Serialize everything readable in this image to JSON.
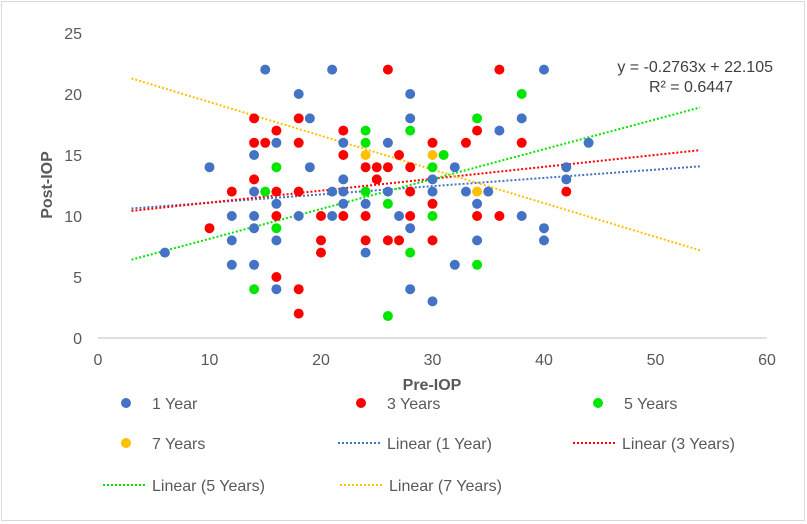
{
  "chart_data": {
    "type": "scatter",
    "xlabel": "Pre-IOP",
    "ylabel": "Post-IOP",
    "xlim": [
      0,
      60
    ],
    "ylim": [
      0,
      25
    ],
    "xticks": [
      0,
      10,
      20,
      30,
      40,
      50,
      60
    ],
    "yticks": [
      0,
      5,
      10,
      15,
      20,
      25
    ],
    "grid": false,
    "legend_position": "bottom",
    "series": [
      {
        "name": "1 Year",
        "color": "#4472C4",
        "points": [
          [
            15,
            22
          ],
          [
            21,
            22
          ],
          [
            18,
            20
          ],
          [
            19,
            18
          ],
          [
            16,
            16
          ],
          [
            14,
            15
          ],
          [
            10,
            14
          ],
          [
            19,
            14
          ],
          [
            14,
            12
          ],
          [
            16,
            11
          ],
          [
            12,
            10
          ],
          [
            14,
            10
          ],
          [
            18,
            10
          ],
          [
            21,
            10
          ],
          [
            14,
            9
          ],
          [
            12,
            8
          ],
          [
            16,
            8
          ],
          [
            6,
            7
          ],
          [
            12,
            6
          ],
          [
            14,
            6
          ],
          [
            16,
            4
          ],
          [
            28,
            20
          ],
          [
            40,
            22
          ],
          [
            28,
            18
          ],
          [
            38,
            18
          ],
          [
            36,
            17
          ],
          [
            22,
            16
          ],
          [
            26,
            16
          ],
          [
            44,
            16
          ],
          [
            32,
            14
          ],
          [
            42,
            14
          ],
          [
            22,
            13
          ],
          [
            30,
            13
          ],
          [
            42,
            13
          ],
          [
            21,
            12
          ],
          [
            22,
            12
          ],
          [
            26,
            12
          ],
          [
            30,
            12
          ],
          [
            33,
            12
          ],
          [
            35,
            12
          ],
          [
            22,
            11
          ],
          [
            24,
            11
          ],
          [
            34,
            11
          ],
          [
            27,
            10
          ],
          [
            38,
            10
          ],
          [
            28,
            9
          ],
          [
            40,
            9
          ],
          [
            24,
            7
          ],
          [
            34,
            8
          ],
          [
            40,
            8
          ],
          [
            32,
            6
          ],
          [
            28,
            4
          ],
          [
            30,
            3
          ]
        ]
      },
      {
        "name": "3 Years",
        "color": "#FF0000",
        "points": [
          [
            14,
            18
          ],
          [
            18,
            18
          ],
          [
            16,
            17
          ],
          [
            14,
            16
          ],
          [
            15,
            16
          ],
          [
            18,
            16
          ],
          [
            14,
            13
          ],
          [
            12,
            12
          ],
          [
            16,
            12
          ],
          [
            18,
            12
          ],
          [
            16,
            10
          ],
          [
            20,
            10
          ],
          [
            10,
            9
          ],
          [
            20,
            8
          ],
          [
            20,
            7
          ],
          [
            16,
            5
          ],
          [
            18,
            4
          ],
          [
            18,
            2
          ],
          [
            26,
            22
          ],
          [
            36,
            22
          ],
          [
            22,
            17
          ],
          [
            34,
            17
          ],
          [
            30,
            16
          ],
          [
            33,
            16
          ],
          [
            38,
            16
          ],
          [
            22,
            15
          ],
          [
            27,
            15
          ],
          [
            24,
            14
          ],
          [
            25,
            14
          ],
          [
            26,
            14
          ],
          [
            28,
            14
          ],
          [
            25,
            13
          ],
          [
            28,
            12
          ],
          [
            42,
            12
          ],
          [
            22,
            10
          ],
          [
            24,
            10
          ],
          [
            28,
            10
          ],
          [
            34,
            10
          ],
          [
            36,
            10
          ],
          [
            30,
            11
          ],
          [
            24,
            8
          ],
          [
            26,
            8
          ],
          [
            27,
            8
          ],
          [
            30,
            8
          ]
        ]
      },
      {
        "name": "5 Years",
        "color": "#00E600",
        "points": [
          [
            16,
            14
          ],
          [
            15,
            12
          ],
          [
            16,
            9
          ],
          [
            14,
            4
          ],
          [
            38,
            20
          ],
          [
            34,
            18
          ],
          [
            24,
            17
          ],
          [
            28,
            17
          ],
          [
            24,
            16
          ],
          [
            31,
            15
          ],
          [
            30,
            14
          ],
          [
            24,
            12
          ],
          [
            26,
            11
          ],
          [
            30,
            10
          ],
          [
            28,
            7
          ],
          [
            34,
            6
          ],
          [
            26,
            1.8
          ]
        ]
      },
      {
        "name": "7 Years",
        "color": "#FFC000",
        "points": [
          [
            24,
            15
          ],
          [
            30,
            15
          ],
          [
            34,
            12
          ]
        ]
      }
    ],
    "trendlines": [
      {
        "name": "Linear (1 Year)",
        "series": "1 Year",
        "color": "#4472C4"
      },
      {
        "name": "Linear (3 Years)",
        "series": "3 Years",
        "color": "#FF0000"
      },
      {
        "name": "Linear (5 Years)",
        "series": "5 Years",
        "color": "#00E600"
      },
      {
        "name": "Linear (7 Years)",
        "series": "7 Years",
        "color": "#FFC000",
        "slope": -0.2763,
        "intercept": 22.105
      }
    ],
    "annotation": {
      "equation": "y = -0.2763x + 22.105",
      "r2": "R² = 0.6447"
    }
  }
}
